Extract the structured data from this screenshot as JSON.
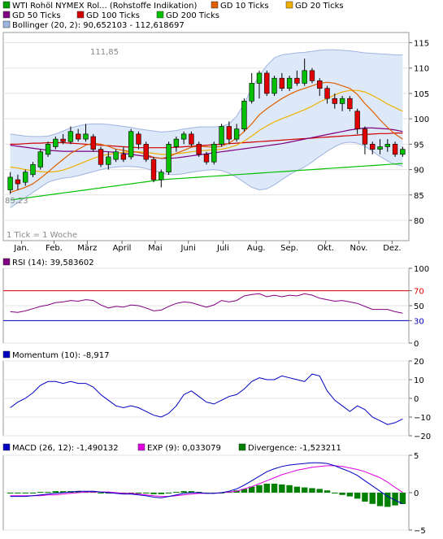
{
  "legend_main": [
    {
      "label": "WTI Rohöl NYMEX Rol... (Rohstoffe Indikation)",
      "color": "#00a000"
    },
    {
      "label": "GD 10 Ticks",
      "color": "#e06000"
    },
    {
      "label": "GD 20 Ticks",
      "color": "#f0b000"
    },
    {
      "label": "GD 50 Ticks",
      "color": "#800080"
    },
    {
      "label": "GD 100 Ticks",
      "color": "#d00000"
    },
    {
      "label": "GD 200 Ticks",
      "color": "#00c000"
    },
    {
      "label": "Bollinger (20, 2): 90,652103 - 112,618697",
      "color": "#a0b4e0"
    }
  ],
  "tick_note": "1 Tick = 1 Woche",
  "price_high_label": "111,85",
  "price_low_label": "85,23",
  "months": [
    "Jan.",
    "Feb.",
    "März",
    "April",
    "Mai",
    "Juni",
    "Juli",
    "Aug.",
    "Sep.",
    "Okt.",
    "Nov.",
    "Dez."
  ],
  "rsi_legend": "RSI (14): 39,583602",
  "momentum_legend": "Momentum (10): -8,917",
  "macd_legend": [
    {
      "label": "MACD (26, 12): -1,490132",
      "color": "#0000c0"
    },
    {
      "label": "EXP (9): 0,033079",
      "color": "#e000e0"
    },
    {
      "label": "Divergence: -1,523211",
      "color": "#008000"
    }
  ],
  "colors": {
    "up": "#00c000",
    "down": "#e00000",
    "bollinger_fill": "#dde8f8",
    "bollinger_line": "#a0b4e0"
  },
  "chart_data": [
    {
      "type": "candlestick",
      "title": "WTI Rohöl NYMEX Rol... (Rohstoffe Indikation)",
      "ylim": [
        76,
        117
      ],
      "yticks": [
        80,
        85,
        90,
        95,
        100,
        105,
        110,
        115
      ],
      "x_labels": [
        "Jan.",
        "Feb.",
        "März",
        "April",
        "Mai",
        "Juni",
        "Juli",
        "Aug.",
        "Sep.",
        "Okt.",
        "Nov.",
        "Dez."
      ],
      "candles": [
        {
          "o": 86.0,
          "c": 88.5,
          "h": 89.5,
          "l": 85.2
        },
        {
          "o": 88.0,
          "c": 87.2,
          "h": 89.0,
          "l": 86.0
        },
        {
          "o": 87.5,
          "c": 89.5,
          "h": 90.0,
          "l": 86.8
        },
        {
          "o": 89.0,
          "c": 91.0,
          "h": 91.5,
          "l": 88.5
        },
        {
          "o": 90.5,
          "c": 93.5,
          "h": 94.0,
          "l": 90.0
        },
        {
          "o": 93.0,
          "c": 95.0,
          "h": 95.5,
          "l": 92.5
        },
        {
          "o": 94.5,
          "c": 96.0,
          "h": 96.5,
          "l": 94.0
        },
        {
          "o": 96.0,
          "c": 95.5,
          "h": 97.0,
          "l": 95.0
        },
        {
          "o": 95.5,
          "c": 97.5,
          "h": 98.5,
          "l": 95.0
        },
        {
          "o": 97.0,
          "c": 96.0,
          "h": 98.0,
          "l": 95.5
        },
        {
          "o": 96.0,
          "c": 97.0,
          "h": 99.0,
          "l": 95.5
        },
        {
          "o": 96.5,
          "c": 94.0,
          "h": 97.0,
          "l": 93.5
        },
        {
          "o": 94.0,
          "c": 91.0,
          "h": 94.5,
          "l": 90.5
        },
        {
          "o": 91.0,
          "c": 92.5,
          "h": 93.5,
          "l": 90.0
        },
        {
          "o": 92.0,
          "c": 93.5,
          "h": 94.0,
          "l": 91.5
        },
        {
          "o": 93.0,
          "c": 92.0,
          "h": 94.5,
          "l": 91.5
        },
        {
          "o": 92.5,
          "c": 97.5,
          "h": 98.0,
          "l": 92.0
        },
        {
          "o": 97.0,
          "c": 95.0,
          "h": 97.5,
          "l": 94.0
        },
        {
          "o": 95.0,
          "c": 92.0,
          "h": 95.5,
          "l": 91.5
        },
        {
          "o": 92.0,
          "c": 88.0,
          "h": 92.5,
          "l": 87.5
        },
        {
          "o": 88.0,
          "c": 89.5,
          "h": 90.0,
          "l": 86.5
        },
        {
          "o": 89.5,
          "c": 95.0,
          "h": 95.5,
          "l": 89.0
        },
        {
          "o": 94.5,
          "c": 96.0,
          "h": 96.5,
          "l": 93.5
        },
        {
          "o": 96.0,
          "c": 97.0,
          "h": 97.5,
          "l": 95.0
        },
        {
          "o": 97.0,
          "c": 95.0,
          "h": 97.5,
          "l": 94.5
        },
        {
          "o": 95.0,
          "c": 93.0,
          "h": 95.5,
          "l": 92.5
        },
        {
          "o": 93.0,
          "c": 91.5,
          "h": 93.5,
          "l": 91.0
        },
        {
          "o": 91.5,
          "c": 95.0,
          "h": 95.5,
          "l": 91.0
        },
        {
          "o": 95.0,
          "c": 98.5,
          "h": 99.0,
          "l": 94.5
        },
        {
          "o": 98.5,
          "c": 96.0,
          "h": 99.5,
          "l": 95.0
        },
        {
          "o": 96.0,
          "c": 98.0,
          "h": 99.0,
          "l": 95.5
        },
        {
          "o": 98.0,
          "c": 103.5,
          "h": 104.0,
          "l": 97.5
        },
        {
          "o": 103.5,
          "c": 107.0,
          "h": 109.0,
          "l": 103.0
        },
        {
          "o": 107.0,
          "c": 109.0,
          "h": 109.5,
          "l": 104.0
        },
        {
          "o": 109.0,
          "c": 105.0,
          "h": 109.5,
          "l": 104.5
        },
        {
          "o": 105.0,
          "c": 108.0,
          "h": 108.5,
          "l": 104.5
        },
        {
          "o": 108.0,
          "c": 106.0,
          "h": 109.0,
          "l": 105.5
        },
        {
          "o": 106.0,
          "c": 108.0,
          "h": 108.5,
          "l": 105.5
        },
        {
          "o": 108.0,
          "c": 107.0,
          "h": 109.5,
          "l": 106.5
        },
        {
          "o": 107.0,
          "c": 109.5,
          "h": 111.85,
          "l": 106.5
        },
        {
          "o": 109.5,
          "c": 107.5,
          "h": 110.0,
          "l": 107.0
        },
        {
          "o": 107.5,
          "c": 106.0,
          "h": 108.0,
          "l": 104.5
        },
        {
          "o": 106.0,
          "c": 104.0,
          "h": 106.5,
          "l": 103.0
        },
        {
          "o": 104.0,
          "c": 103.0,
          "h": 105.0,
          "l": 102.0
        },
        {
          "o": 103.0,
          "c": 104.0,
          "h": 104.5,
          "l": 101.5
        },
        {
          "o": 104.0,
          "c": 102.0,
          "h": 104.5,
          "l": 101.5
        },
        {
          "o": 101.5,
          "c": 98.0,
          "h": 102.0,
          "l": 97.0
        },
        {
          "o": 98.0,
          "c": 95.0,
          "h": 98.5,
          "l": 93.0
        },
        {
          "o": 95.0,
          "c": 94.0,
          "h": 95.5,
          "l": 93.0
        },
        {
          "o": 94.0,
          "c": 94.5,
          "h": 96.0,
          "l": 93.0
        },
        {
          "o": 94.5,
          "c": 95.0,
          "h": 96.0,
          "l": 93.5
        },
        {
          "o": 95.0,
          "c": 93.0,
          "h": 95.5,
          "l": 92.5
        },
        {
          "o": 93.0,
          "c": 94.0,
          "h": 94.5,
          "l": 92.5
        }
      ],
      "sma10": [
        85.5,
        86.0,
        86.5,
        87.2,
        88.3,
        89.5,
        90.8,
        92.0,
        93.2,
        94.0,
        94.8,
        95.2,
        95.0,
        94.6,
        94.0,
        93.8,
        93.5,
        93.4,
        93.0,
        92.4,
        92.2,
        92.5,
        93.2,
        93.8,
        94.4,
        94.6,
        94.5,
        94.4,
        94.6,
        95.2,
        96.2,
        97.5,
        99.0,
        100.8,
        102.0,
        103.0,
        104.0,
        104.8,
        105.5,
        106.0,
        106.5,
        107.0,
        107.2,
        107.0,
        106.5,
        106.0,
        104.8,
        103.0,
        101.5,
        99.8,
        98.3,
        97.0,
        96.0
      ],
      "sma20": [
        90.5,
        90.3,
        90.0,
        89.8,
        89.6,
        89.5,
        89.6,
        89.9,
        90.4,
        91.0,
        91.6,
        92.2,
        92.7,
        93.0,
        93.2,
        93.4,
        93.5,
        93.5,
        93.4,
        93.2,
        93.0,
        93.0,
        93.1,
        93.3,
        93.5,
        93.7,
        93.8,
        93.9,
        94.0,
        94.3,
        94.8,
        95.6,
        96.6,
        97.7,
        98.6,
        99.4,
        100.0,
        100.6,
        101.2,
        101.8,
        102.5,
        103.3,
        104.0,
        104.7,
        105.3,
        105.6,
        105.6,
        105.3,
        104.6,
        103.8,
        102.9,
        102.2,
        101.5
      ],
      "sma50": [
        94.8,
        94.6,
        94.4,
        94.2,
        94.0,
        93.8,
        93.7,
        93.6,
        93.6,
        93.6,
        93.6,
        93.6,
        93.6,
        93.5,
        93.4,
        93.2,
        93.0,
        92.8,
        92.6,
        92.4,
        92.2,
        92.2,
        92.3,
        92.5,
        92.7,
        92.9,
        93.1,
        93.3,
        93.5,
        93.7,
        93.9,
        94.1,
        94.3,
        94.5,
        94.7,
        94.9,
        95.1,
        95.4,
        95.7,
        96.0,
        96.3,
        96.6,
        96.9,
        97.2,
        97.5,
        97.8,
        98.0,
        98.2,
        98.2,
        98.1,
        98.0,
        97.8,
        97.5
      ],
      "sma100": [
        95.0,
        95.0,
        95.1,
        95.2,
        95.2,
        95.3,
        95.3,
        95.3,
        95.2,
        95.1,
        95.0,
        94.9,
        94.8,
        94.7,
        94.6,
        94.5,
        94.4,
        94.3,
        94.3,
        94.3,
        94.3,
        94.3,
        94.4,
        94.5,
        94.6,
        94.7,
        94.8,
        94.9,
        95.0,
        95.1,
        95.2,
        95.3,
        95.4,
        95.5,
        95.6,
        95.7,
        95.8,
        95.9,
        96.0,
        96.1,
        96.2,
        96.3,
        96.4,
        96.5,
        96.6,
        96.7,
        96.8,
        96.9,
        97.0,
        97.1,
        97.1,
        97.2,
        97.2
      ],
      "sma200": [
        84.0,
        84.2,
        84.4,
        84.6,
        84.8,
        85.0,
        85.2,
        85.4,
        85.6,
        85.8,
        86.0,
        86.2,
        86.4,
        86.6,
        86.8,
        87.0,
        87.2,
        87.4,
        87.6,
        87.8,
        88.0,
        88.1,
        88.2,
        88.3,
        88.4,
        88.5,
        88.6,
        88.7,
        88.8,
        88.9,
        89.0,
        89.1,
        89.2,
        89.3,
        89.4,
        89.5,
        89.6,
        89.7,
        89.8,
        89.9,
        90.0,
        90.1,
        90.2,
        90.3,
        90.4,
        90.5,
        90.6,
        90.7,
        90.8,
        90.9,
        91.0,
        91.1,
        91.2
      ],
      "bb_upper": [
        97.0,
        96.8,
        96.6,
        96.5,
        96.5,
        96.6,
        97.0,
        97.6,
        98.2,
        98.6,
        98.9,
        99.0,
        99.0,
        98.9,
        98.7,
        98.5,
        98.3,
        98.0,
        97.8,
        97.6,
        97.4,
        97.5,
        97.7,
        98.0,
        98.2,
        98.4,
        98.4,
        98.4,
        98.5,
        99.0,
        100.5,
        103.0,
        106.0,
        108.5,
        110.5,
        112.0,
        112.6,
        112.8,
        113.0,
        113.1,
        113.3,
        113.5,
        113.6,
        113.6,
        113.5,
        113.4,
        113.2,
        113.0,
        112.9,
        112.8,
        112.7,
        112.6,
        112.6
      ],
      "bb_lower": [
        82.5,
        83.5,
        84.5,
        85.5,
        86.5,
        87.5,
        88.0,
        88.3,
        88.5,
        88.8,
        89.2,
        89.6,
        90.0,
        90.3,
        90.5,
        90.6,
        90.6,
        90.5,
        90.2,
        89.8,
        89.3,
        89.0,
        89.0,
        89.2,
        89.5,
        89.7,
        89.9,
        90.0,
        89.8,
        89.3,
        88.5,
        87.5,
        86.5,
        86.0,
        86.2,
        87.0,
        88.0,
        89.0,
        89.8,
        90.5,
        91.5,
        92.6,
        93.6,
        94.5,
        95.2,
        95.4,
        95.2,
        94.6,
        93.6,
        92.6,
        91.7,
        91.0,
        90.65
      ]
    },
    {
      "type": "line",
      "title": "RSI (14): 39,583602",
      "ylim": [
        0,
        100
      ],
      "yticks": [
        0,
        30,
        50,
        70,
        100
      ],
      "reference_lines": [
        {
          "value": 70,
          "color": "#e00000"
        },
        {
          "value": 30,
          "color": "#0000c0"
        }
      ],
      "series": [
        {
          "name": "RSI (14): 39,583602",
          "color": "#800080",
          "values": [
            42,
            41,
            43,
            46,
            49,
            51,
            54,
            55,
            57,
            56,
            58,
            57,
            51,
            47,
            49,
            48,
            51,
            50,
            47,
            43,
            44,
            49,
            53,
            55,
            54,
            51,
            48,
            51,
            57,
            55,
            57,
            63,
            65,
            66,
            62,
            64,
            62,
            64,
            63,
            66,
            64,
            60,
            58,
            56,
            57,
            55,
            53,
            49,
            45,
            45,
            45,
            42,
            40
          ]
        }
      ]
    },
    {
      "type": "line",
      "title": "Momentum (10): -8,917",
      "ylim": [
        -20,
        20
      ],
      "yticks": [
        -20,
        -10,
        0,
        10,
        20
      ],
      "series": [
        {
          "name": "Momentum (10): -8,917",
          "color": "#0000c0",
          "values": [
            -5,
            -2,
            0,
            3,
            7,
            9,
            9,
            8,
            9,
            8,
            8,
            6,
            2,
            -1,
            -4,
            -5,
            -4,
            -5,
            -7,
            -9,
            -10,
            -8,
            -4,
            2,
            4,
            1,
            -2,
            -3,
            -1,
            1,
            2,
            5,
            9,
            11,
            10,
            10,
            12,
            11,
            10,
            9,
            13,
            12,
            4,
            -1,
            -4,
            -7,
            -4,
            -6,
            -10,
            -12,
            -14,
            -13,
            -11
          ]
        }
      ]
    },
    {
      "type": "line",
      "title": "MACD (26, 12): -1,490132",
      "ylim": [
        -5,
        5
      ],
      "yticks": [
        -5,
        0,
        5
      ],
      "series": [
        {
          "name": "MACD (26, 12): -1,490132",
          "color": "#0000c0",
          "values": [
            -0.5,
            -0.5,
            -0.5,
            -0.4,
            -0.3,
            -0.2,
            -0.1,
            0.0,
            0.1,
            0.2,
            0.2,
            0.2,
            0.1,
            0.0,
            -0.1,
            -0.2,
            -0.2,
            -0.3,
            -0.4,
            -0.6,
            -0.7,
            -0.5,
            -0.3,
            -0.1,
            0.0,
            0.0,
            -0.1,
            -0.1,
            0.0,
            0.2,
            0.5,
            1.0,
            1.6,
            2.2,
            2.8,
            3.2,
            3.5,
            3.7,
            3.8,
            3.9,
            4.0,
            4.0,
            3.9,
            3.6,
            3.2,
            2.8,
            2.3,
            1.6,
            0.9,
            0.2,
            -0.5,
            -1.0,
            -1.49
          ]
        },
        {
          "name": "EXP (9): 0,033079",
          "color": "#e000e0",
          "values": [
            -0.4,
            -0.4,
            -0.4,
            -0.4,
            -0.4,
            -0.3,
            -0.3,
            -0.2,
            -0.1,
            0.0,
            0.1,
            0.1,
            0.1,
            0.1,
            0.0,
            -0.1,
            -0.1,
            -0.2,
            -0.3,
            -0.4,
            -0.5,
            -0.5,
            -0.4,
            -0.3,
            -0.2,
            -0.1,
            -0.1,
            -0.1,
            0.0,
            0.1,
            0.2,
            0.5,
            0.8,
            1.2,
            1.6,
            2.0,
            2.4,
            2.7,
            3.0,
            3.2,
            3.4,
            3.5,
            3.6,
            3.6,
            3.5,
            3.3,
            3.1,
            2.8,
            2.4,
            2.0,
            1.4,
            0.7,
            0.03
          ]
        },
        {
          "name": "Divergence: -1,523211",
          "color": "#008000",
          "type": "bar",
          "values": [
            -0.1,
            -0.1,
            -0.1,
            0.0,
            0.1,
            0.1,
            0.2,
            0.2,
            0.2,
            0.2,
            0.1,
            0.1,
            0.0,
            -0.1,
            -0.1,
            -0.1,
            -0.1,
            -0.1,
            -0.1,
            -0.2,
            -0.2,
            0.0,
            0.1,
            0.2,
            0.2,
            0.1,
            0.0,
            0.0,
            0.0,
            0.1,
            0.3,
            0.5,
            0.8,
            1.0,
            1.2,
            1.2,
            1.1,
            1.0,
            0.8,
            0.7,
            0.6,
            0.5,
            0.3,
            0.0,
            -0.3,
            -0.5,
            -0.8,
            -1.2,
            -1.5,
            -1.8,
            -1.9,
            -1.7,
            -1.52
          ]
        }
      ]
    }
  ]
}
